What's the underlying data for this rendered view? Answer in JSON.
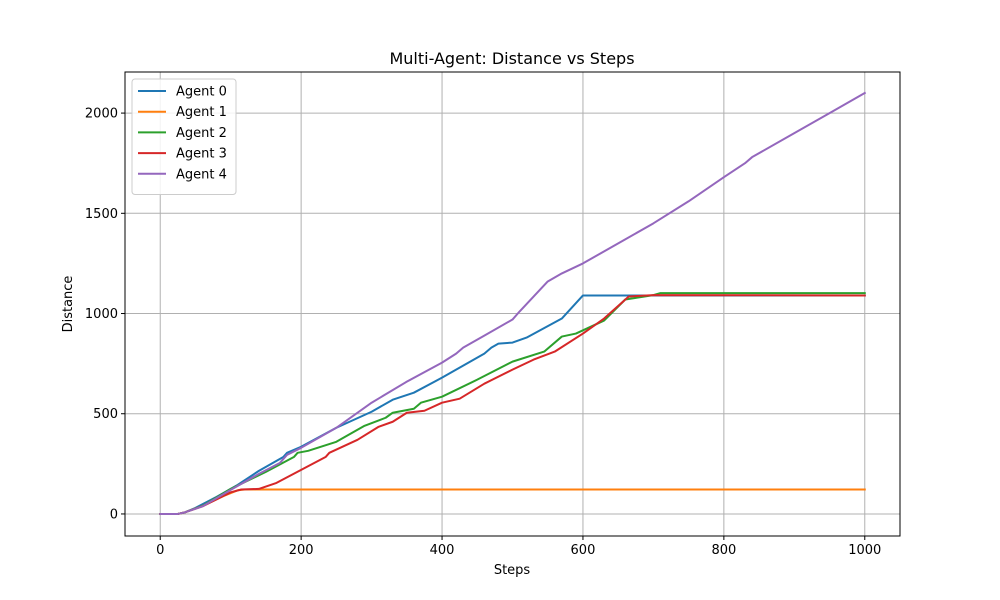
{
  "chart_data": {
    "type": "line",
    "title": "Multi-Agent: Distance vs Steps",
    "xlabel": "Steps",
    "ylabel": "Distance",
    "xlim": [
      -50,
      1050
    ],
    "ylim": [
      -110,
      2205
    ],
    "xticks": [
      0,
      200,
      400,
      600,
      800,
      1000
    ],
    "yticks": [
      0,
      500,
      1000,
      1500,
      2000
    ],
    "grid": true,
    "legend_position": "upper-left",
    "series": [
      {
        "name": "Agent 0",
        "color": "#1f77b4",
        "points": [
          [
            0,
            0
          ],
          [
            25,
            0
          ],
          [
            35,
            8
          ],
          [
            50,
            30
          ],
          [
            80,
            85
          ],
          [
            110,
            145
          ],
          [
            140,
            215
          ],
          [
            175,
            285
          ],
          [
            180,
            305
          ],
          [
            200,
            335
          ],
          [
            250,
            430
          ],
          [
            300,
            510
          ],
          [
            330,
            570
          ],
          [
            360,
            605
          ],
          [
            400,
            680
          ],
          [
            460,
            800
          ],
          [
            470,
            830
          ],
          [
            480,
            850
          ],
          [
            500,
            855
          ],
          [
            520,
            880
          ],
          [
            570,
            975
          ],
          [
            600,
            1090
          ],
          [
            1000,
            1090
          ]
        ]
      },
      {
        "name": "Agent 1",
        "color": "#ff7f0e",
        "points": [
          [
            0,
            0
          ],
          [
            25,
            0
          ],
          [
            35,
            8
          ],
          [
            60,
            40
          ],
          [
            90,
            90
          ],
          [
            110,
            118
          ],
          [
            120,
            122
          ],
          [
            1000,
            122
          ]
        ]
      },
      {
        "name": "Agent 2",
        "color": "#2ca02c",
        "points": [
          [
            0,
            0
          ],
          [
            25,
            0
          ],
          [
            35,
            8
          ],
          [
            60,
            40
          ],
          [
            100,
            125
          ],
          [
            150,
            210
          ],
          [
            190,
            285
          ],
          [
            195,
            305
          ],
          [
            210,
            315
          ],
          [
            250,
            360
          ],
          [
            290,
            440
          ],
          [
            320,
            480
          ],
          [
            330,
            505
          ],
          [
            360,
            525
          ],
          [
            370,
            555
          ],
          [
            400,
            585
          ],
          [
            450,
            670
          ],
          [
            500,
            760
          ],
          [
            545,
            810
          ],
          [
            570,
            885
          ],
          [
            590,
            900
          ],
          [
            630,
            965
          ],
          [
            660,
            1070
          ],
          [
            700,
            1092
          ],
          [
            710,
            1102
          ],
          [
            1000,
            1102
          ]
        ]
      },
      {
        "name": "Agent 3",
        "color": "#d62728",
        "points": [
          [
            0,
            0
          ],
          [
            25,
            0
          ],
          [
            35,
            8
          ],
          [
            60,
            38
          ],
          [
            100,
            108
          ],
          [
            115,
            122
          ],
          [
            140,
            125
          ],
          [
            165,
            155
          ],
          [
            200,
            220
          ],
          [
            235,
            285
          ],
          [
            240,
            305
          ],
          [
            280,
            370
          ],
          [
            310,
            435
          ],
          [
            330,
            460
          ],
          [
            350,
            505
          ],
          [
            375,
            515
          ],
          [
            400,
            555
          ],
          [
            425,
            575
          ],
          [
            460,
            650
          ],
          [
            500,
            720
          ],
          [
            530,
            770
          ],
          [
            560,
            810
          ],
          [
            600,
            900
          ],
          [
            630,
            975
          ],
          [
            665,
            1085
          ],
          [
            700,
            1092
          ],
          [
            1000,
            1090
          ]
        ]
      },
      {
        "name": "Agent 4",
        "color": "#9467bd",
        "points": [
          [
            0,
            0
          ],
          [
            25,
            0
          ],
          [
            35,
            8
          ],
          [
            60,
            38
          ],
          [
            100,
            120
          ],
          [
            140,
            200
          ],
          [
            170,
            255
          ],
          [
            180,
            295
          ],
          [
            200,
            330
          ],
          [
            250,
            430
          ],
          [
            300,
            555
          ],
          [
            350,
            660
          ],
          [
            400,
            755
          ],
          [
            420,
            800
          ],
          [
            430,
            830
          ],
          [
            460,
            890
          ],
          [
            500,
            970
          ],
          [
            510,
            1010
          ],
          [
            550,
            1160
          ],
          [
            570,
            1200
          ],
          [
            600,
            1250
          ],
          [
            620,
            1290
          ],
          [
            660,
            1370
          ],
          [
            700,
            1450
          ],
          [
            750,
            1560
          ],
          [
            800,
            1680
          ],
          [
            830,
            1750
          ],
          [
            840,
            1780
          ],
          [
            900,
            1900
          ],
          [
            950,
            2000
          ],
          [
            1000,
            2100
          ]
        ]
      }
    ]
  }
}
